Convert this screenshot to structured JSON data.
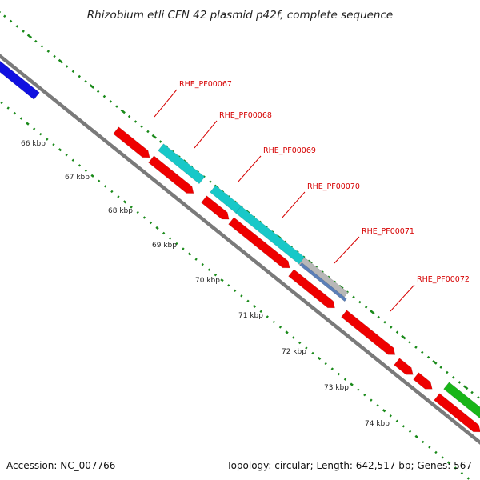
{
  "title": "Rhizobium etli CFN 42 plasmid p42f, complete sequence",
  "footer": {
    "accession": "Accession: NC_007766",
    "summary": "Topology: circular; Length: 642,517 bp; Genes: 567"
  },
  "colors": {
    "backbone": "#8c8c8c",
    "ticks": "#1a8a1a",
    "gene_red": "#ee0000",
    "gene_cyan": "#18c8c8",
    "gene_blue": "#1010e0",
    "gene_green": "#19b519",
    "gene_gray": "#b8b8b8",
    "gene_steel": "#5a7fb8",
    "label": "#d60000"
  },
  "kbp_labels": [
    "66 kbp",
    "67 kbp",
    "68 kbp",
    "69 kbp",
    "70 kbp",
    "71 kbp",
    "72 kbp",
    "73 kbp",
    "74 kbp"
  ],
  "gene_labels": [
    "RHE_PF00067",
    "RHE_PF00068",
    "RHE_PF00069",
    "RHE_PF00070",
    "RHE_PF00071",
    "RHE_PF00072"
  ]
}
